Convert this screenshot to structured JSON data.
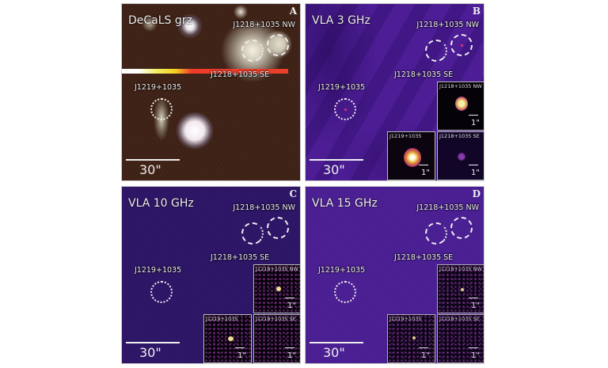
{
  "figure": {
    "panels": [
      {
        "letter": "A",
        "title": "DeCaLS grz",
        "label_nw": "J1218+1035 NW",
        "label_se": "J1218+1035 SE",
        "label_j1219": "J1219+1035",
        "scale": "30\""
      },
      {
        "letter": "B",
        "title": "VLA 3 GHz",
        "label_nw": "J1218+1035 NW",
        "label_se": "J1218+1035 SE",
        "label_j1219": "J1219+1035",
        "scale": "30\"",
        "insets": {
          "nw": "J1218+1035 NW",
          "j1219": "J1219+1035",
          "se": "J1218+1035 SE",
          "scale": "1\""
        }
      },
      {
        "letter": "C",
        "title": "VLA 10 GHz",
        "label_nw": "J1218+1035 NW",
        "label_se": "J1218+1035 SE",
        "label_j1219": "J1219+1035",
        "scale": "30\"",
        "insets": {
          "nw": "J1218+1035 NW",
          "j1219": "J1219+1035",
          "se": "J1218+1035 SE",
          "scale": "1\""
        }
      },
      {
        "letter": "D",
        "title": "VLA 15 GHz",
        "label_nw": "J1218+1035 NW",
        "label_se": "J1218+1035 SE",
        "label_j1219": "J1219+1035",
        "scale": "30\"",
        "insets": {
          "nw": "J1218+1035 NW",
          "j1219": "J1219+1035",
          "se": "J1218+1035 SE",
          "scale": "1\""
        }
      }
    ]
  }
}
